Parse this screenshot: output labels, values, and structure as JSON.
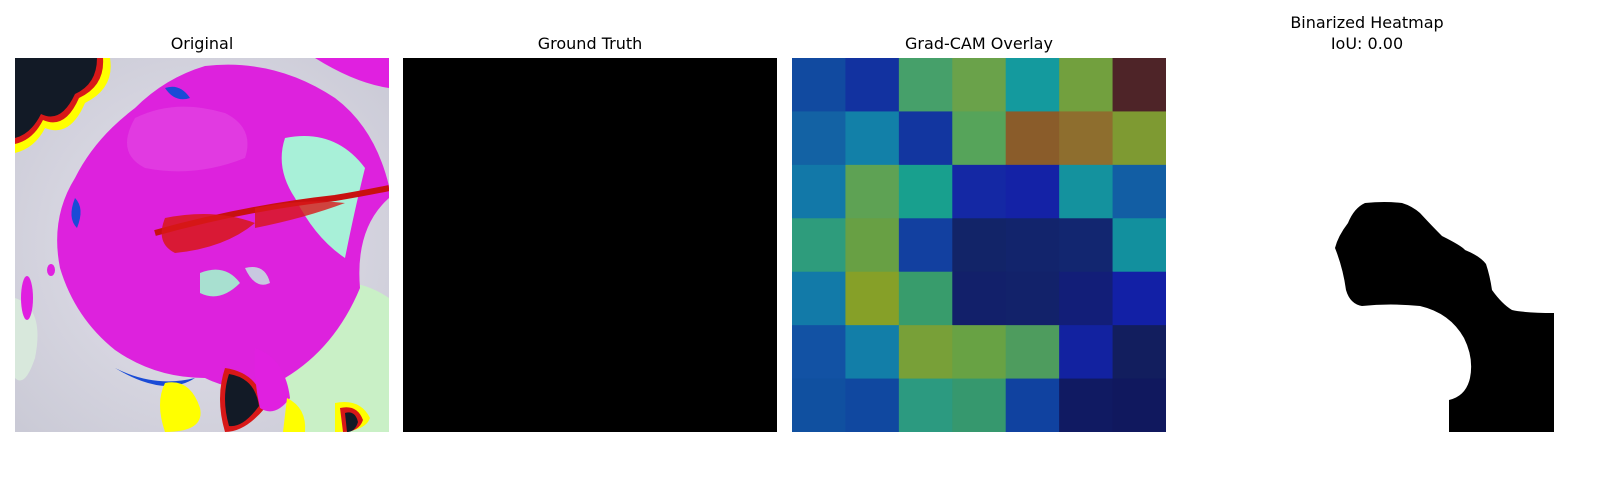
{
  "panels": [
    {
      "title": "Original"
    },
    {
      "title": "Ground Truth"
    },
    {
      "title": "Grad-CAM Overlay"
    },
    {
      "title": "Binarized Heatmap",
      "subtitle": "IoU: 0.00"
    }
  ],
  "overlay_grid": {
    "rows": 7,
    "cols": 7,
    "colors": [
      [
        "#114aa0",
        "#1232a0",
        "#46a06a",
        "#6aa24a",
        "#149a9e",
        "#72a03e",
        "#4e2428"
      ],
      [
        "#1362a4",
        "#1280a8",
        "#1236a0",
        "#56a45a",
        "#8a5c2a",
        "#8e6e2e",
        "#7e9a32"
      ],
      [
        "#1278a8",
        "#5ea254",
        "#18a08e",
        "#1428a4",
        "#1422a6",
        "#14929e",
        "#125ea4"
      ],
      [
        "#2e9c7c",
        "#68a044",
        "#1240a0",
        "#122468",
        "#12246c",
        "#122670",
        "#12909e"
      ],
      [
        "#127aa8",
        "#86a028",
        "#389c6c",
        "#12206a",
        "#12226a",
        "#121e78",
        "#1220a6"
      ],
      [
        "#1252a4",
        "#127ea8",
        "#78a038",
        "#68a244",
        "#4e9c5e",
        "#1222a0",
        "#121e5e"
      ],
      [
        "#1050a0",
        "#1048a0",
        "#2c9a80",
        "#36986e",
        "#1042a0",
        "#101a62",
        "#10185e"
      ]
    ]
  },
  "binarized_mask": {
    "background": "#ffffff",
    "foreground": "#000000"
  }
}
